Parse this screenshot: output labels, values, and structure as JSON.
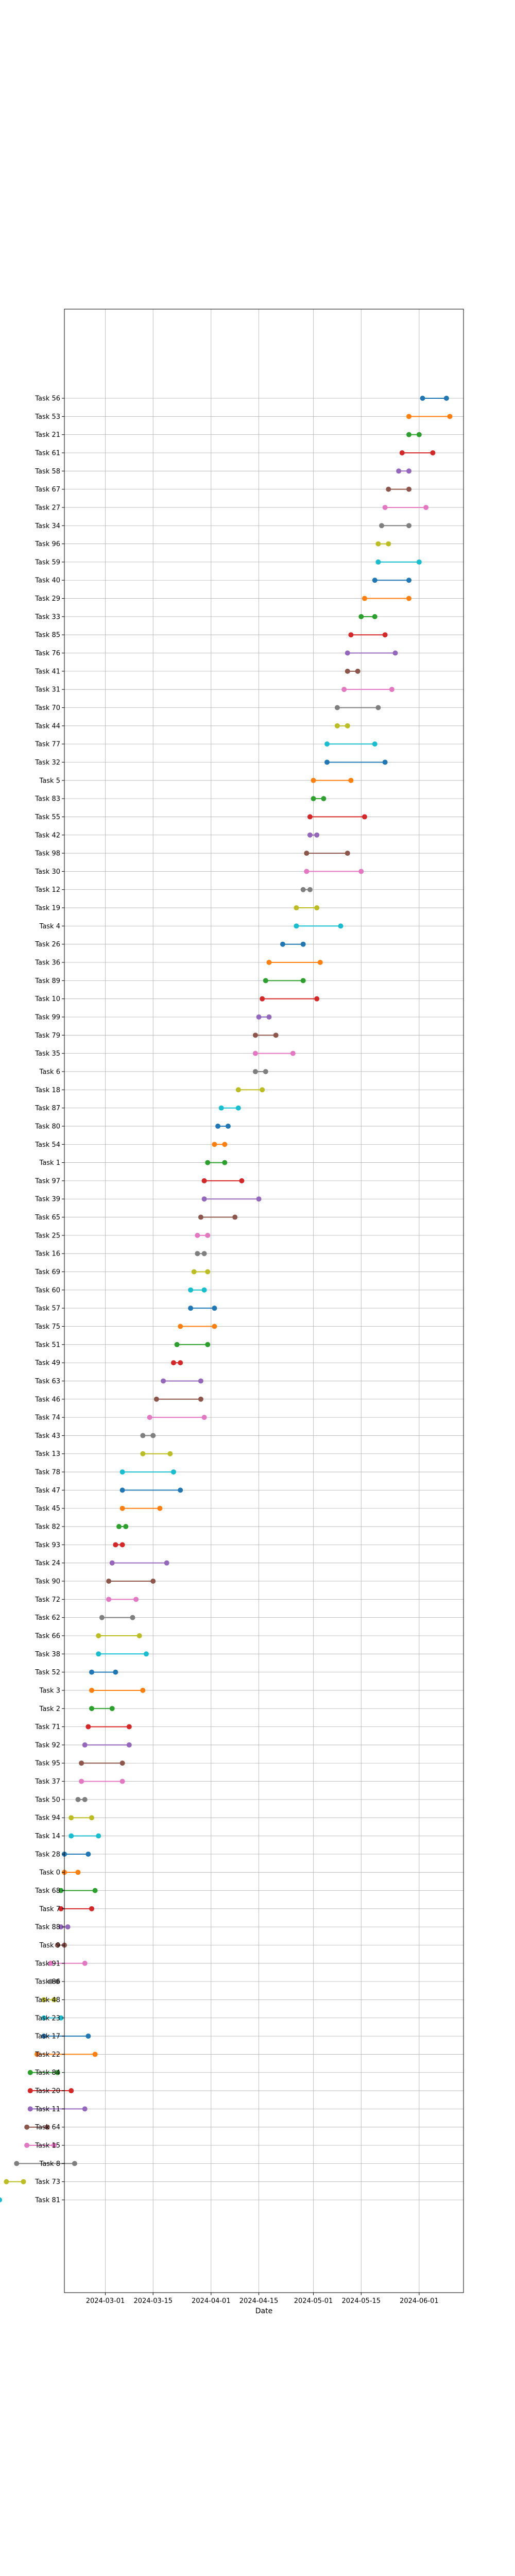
{
  "chart_data": {
    "type": "dumbbell",
    "title": "",
    "xlabel": "Date",
    "ylabel": "",
    "grid": true,
    "x_ticks": [
      "2024-03-01",
      "2024-03-15",
      "2024-04-01",
      "2024-04-15",
      "2024-05-01",
      "2024-05-15",
      "2024-06-01"
    ],
    "xlim": [
      "2024-02-18",
      "2024-06-14"
    ],
    "colors": [
      "#1f77b4",
      "#ff7f0e",
      "#2ca02c",
      "#d62728",
      "#9467bd",
      "#8c564b",
      "#e377c2",
      "#7f7f7f",
      "#bcbd22",
      "#17becf"
    ],
    "tasks": [
      {
        "label": "Task 56",
        "start": "2024-06-02",
        "end": "2024-06-09"
      },
      {
        "label": "Task 53",
        "start": "2024-05-29",
        "end": "2024-06-10"
      },
      {
        "label": "Task 21",
        "start": "2024-05-29",
        "end": "2024-06-01"
      },
      {
        "label": "Task 61",
        "start": "2024-05-27",
        "end": "2024-06-05"
      },
      {
        "label": "Task 58",
        "start": "2024-05-26",
        "end": "2024-05-29"
      },
      {
        "label": "Task 67",
        "start": "2024-05-23",
        "end": "2024-05-29"
      },
      {
        "label": "Task 27",
        "start": "2024-05-22",
        "end": "2024-06-03"
      },
      {
        "label": "Task 34",
        "start": "2024-05-21",
        "end": "2024-05-29"
      },
      {
        "label": "Task 96",
        "start": "2024-05-20",
        "end": "2024-05-23"
      },
      {
        "label": "Task 59",
        "start": "2024-05-20",
        "end": "2024-06-01"
      },
      {
        "label": "Task 40",
        "start": "2024-05-19",
        "end": "2024-05-29"
      },
      {
        "label": "Task 29",
        "start": "2024-05-16",
        "end": "2024-05-29"
      },
      {
        "label": "Task 33",
        "start": "2024-05-15",
        "end": "2024-05-19"
      },
      {
        "label": "Task 85",
        "start": "2024-05-12",
        "end": "2024-05-22"
      },
      {
        "label": "Task 76",
        "start": "2024-05-11",
        "end": "2024-05-25"
      },
      {
        "label": "Task 41",
        "start": "2024-05-11",
        "end": "2024-05-14"
      },
      {
        "label": "Task 31",
        "start": "2024-05-10",
        "end": "2024-05-24"
      },
      {
        "label": "Task 70",
        "start": "2024-05-08",
        "end": "2024-05-20"
      },
      {
        "label": "Task 44",
        "start": "2024-05-08",
        "end": "2024-05-11"
      },
      {
        "label": "Task 77",
        "start": "2024-05-05",
        "end": "2024-05-19"
      },
      {
        "label": "Task 32",
        "start": "2024-05-05",
        "end": "2024-05-22"
      },
      {
        "label": "Task 5",
        "start": "2024-05-01",
        "end": "2024-05-12"
      },
      {
        "label": "Task 83",
        "start": "2024-05-01",
        "end": "2024-05-04"
      },
      {
        "label": "Task 55",
        "start": "2024-04-30",
        "end": "2024-05-16"
      },
      {
        "label": "Task 42",
        "start": "2024-04-30",
        "end": "2024-05-02"
      },
      {
        "label": "Task 98",
        "start": "2024-04-29",
        "end": "2024-05-11"
      },
      {
        "label": "Task 30",
        "start": "2024-04-29",
        "end": "2024-05-15"
      },
      {
        "label": "Task 12",
        "start": "2024-04-28",
        "end": "2024-04-30"
      },
      {
        "label": "Task 19",
        "start": "2024-04-26",
        "end": "2024-05-02"
      },
      {
        "label": "Task 4",
        "start": "2024-04-26",
        "end": "2024-05-09"
      },
      {
        "label": "Task 26",
        "start": "2024-04-22",
        "end": "2024-04-28"
      },
      {
        "label": "Task 36",
        "start": "2024-04-18",
        "end": "2024-05-03"
      },
      {
        "label": "Task 89",
        "start": "2024-04-17",
        "end": "2024-04-28"
      },
      {
        "label": "Task 10",
        "start": "2024-04-16",
        "end": "2024-05-02"
      },
      {
        "label": "Task 99",
        "start": "2024-04-15",
        "end": "2024-04-18"
      },
      {
        "label": "Task 79",
        "start": "2024-04-14",
        "end": "2024-04-20"
      },
      {
        "label": "Task 35",
        "start": "2024-04-14",
        "end": "2024-04-25"
      },
      {
        "label": "Task 6",
        "start": "2024-04-14",
        "end": "2024-04-17"
      },
      {
        "label": "Task 18",
        "start": "2024-04-09",
        "end": "2024-04-16"
      },
      {
        "label": "Task 87",
        "start": "2024-04-04",
        "end": "2024-04-09"
      },
      {
        "label": "Task 80",
        "start": "2024-04-03",
        "end": "2024-04-06"
      },
      {
        "label": "Task 54",
        "start": "2024-04-02",
        "end": "2024-04-05"
      },
      {
        "label": "Task 1",
        "start": "2024-03-31",
        "end": "2024-04-05"
      },
      {
        "label": "Task 97",
        "start": "2024-03-30",
        "end": "2024-04-10"
      },
      {
        "label": "Task 39",
        "start": "2024-03-30",
        "end": "2024-04-15"
      },
      {
        "label": "Task 65",
        "start": "2024-03-29",
        "end": "2024-04-08"
      },
      {
        "label": "Task 25",
        "start": "2024-03-28",
        "end": "2024-03-31"
      },
      {
        "label": "Task 16",
        "start": "2024-03-28",
        "end": "2024-03-30"
      },
      {
        "label": "Task 69",
        "start": "2024-03-27",
        "end": "2024-03-31"
      },
      {
        "label": "Task 60",
        "start": "2024-03-26",
        "end": "2024-03-30"
      },
      {
        "label": "Task 57",
        "start": "2024-03-26",
        "end": "2024-04-02"
      },
      {
        "label": "Task 75",
        "start": "2024-03-23",
        "end": "2024-04-02"
      },
      {
        "label": "Task 51",
        "start": "2024-03-22",
        "end": "2024-03-31"
      },
      {
        "label": "Task 49",
        "start": "2024-03-21",
        "end": "2024-03-23"
      },
      {
        "label": "Task 63",
        "start": "2024-03-18",
        "end": "2024-03-29"
      },
      {
        "label": "Task 46",
        "start": "2024-03-16",
        "end": "2024-03-29"
      },
      {
        "label": "Task 74",
        "start": "2024-03-14",
        "end": "2024-03-30"
      },
      {
        "label": "Task 43",
        "start": "2024-03-12",
        "end": "2024-03-15"
      },
      {
        "label": "Task 13",
        "start": "2024-03-12",
        "end": "2024-03-20"
      },
      {
        "label": "Task 78",
        "start": "2024-03-06",
        "end": "2024-03-21"
      },
      {
        "label": "Task 47",
        "start": "2024-03-06",
        "end": "2024-03-23"
      },
      {
        "label": "Task 45",
        "start": "2024-03-06",
        "end": "2024-03-17"
      },
      {
        "label": "Task 82",
        "start": "2024-03-05",
        "end": "2024-03-07"
      },
      {
        "label": "Task 93",
        "start": "2024-03-04",
        "end": "2024-03-06"
      },
      {
        "label": "Task 24",
        "start": "2024-03-03",
        "end": "2024-03-19"
      },
      {
        "label": "Task 90",
        "start": "2024-03-02",
        "end": "2024-03-15"
      },
      {
        "label": "Task 72",
        "start": "2024-03-02",
        "end": "2024-03-10"
      },
      {
        "label": "Task 62",
        "start": "2024-02-29",
        "end": "2024-03-09"
      },
      {
        "label": "Task 66",
        "start": "2024-02-28",
        "end": "2024-03-11"
      },
      {
        "label": "Task 38",
        "start": "2024-02-28",
        "end": "2024-03-13"
      },
      {
        "label": "Task 52",
        "start": "2024-02-26",
        "end": "2024-03-04"
      },
      {
        "label": "Task 3",
        "start": "2024-02-26",
        "end": "2024-03-12"
      },
      {
        "label": "Task 2",
        "start": "2024-02-26",
        "end": "2024-03-03"
      },
      {
        "label": "Task 71",
        "start": "2024-02-25",
        "end": "2024-03-08"
      },
      {
        "label": "Task 92",
        "start": "2024-02-24",
        "end": "2024-03-08"
      },
      {
        "label": "Task 95",
        "start": "2024-02-23",
        "end": "2024-03-06"
      },
      {
        "label": "Task 37",
        "start": "2024-02-23",
        "end": "2024-03-06"
      },
      {
        "label": "Task 50",
        "start": "2024-02-22",
        "end": "2024-02-24"
      },
      {
        "label": "Task 94",
        "start": "2024-02-20",
        "end": "2024-02-26"
      },
      {
        "label": "Task 14",
        "start": "2024-02-20",
        "end": "2024-02-28"
      },
      {
        "label": "Task 28",
        "start": "2024-02-18",
        "end": "2024-02-25"
      },
      {
        "label": "Task 0",
        "start": "2024-02-18",
        "end": "2024-02-22"
      },
      {
        "label": "Task 68",
        "start": "2024-02-17",
        "end": "2024-02-27"
      },
      {
        "label": "Task 7",
        "start": "2024-02-17",
        "end": "2024-02-26"
      },
      {
        "label": "Task 88",
        "start": "2024-02-17",
        "end": "2024-02-19"
      },
      {
        "label": "Task 9",
        "start": "2024-02-16",
        "end": "2024-02-18"
      },
      {
        "label": "Task 91",
        "start": "2024-02-14",
        "end": "2024-02-24"
      },
      {
        "label": "Task 86",
        "start": "2024-02-14",
        "end": "2024-02-16"
      },
      {
        "label": "Task 48",
        "start": "2024-02-12",
        "end": "2024-02-15"
      },
      {
        "label": "Task 23",
        "start": "2024-02-12",
        "end": "2024-02-17"
      },
      {
        "label": "Task 17",
        "start": "2024-02-12",
        "end": "2024-02-25"
      },
      {
        "label": "Task 22",
        "start": "2024-02-10",
        "end": "2024-02-27"
      },
      {
        "label": "Task 84",
        "start": "2024-02-08",
        "end": "2024-02-16"
      },
      {
        "label": "Task 20",
        "start": "2024-02-08",
        "end": "2024-02-20"
      },
      {
        "label": "Task 11",
        "start": "2024-02-08",
        "end": "2024-02-24"
      },
      {
        "label": "Task 64",
        "start": "2024-02-07",
        "end": "2024-02-13"
      },
      {
        "label": "Task 15",
        "start": "2024-02-07",
        "end": "2024-02-15"
      },
      {
        "label": "Task 8",
        "start": "2024-02-04",
        "end": "2024-02-21"
      },
      {
        "label": "Task 73",
        "start": "2024-02-01",
        "end": "2024-02-06"
      },
      {
        "label": "Task 81",
        "start": "2024-01-27",
        "end": "2024-01-30"
      }
    ]
  }
}
